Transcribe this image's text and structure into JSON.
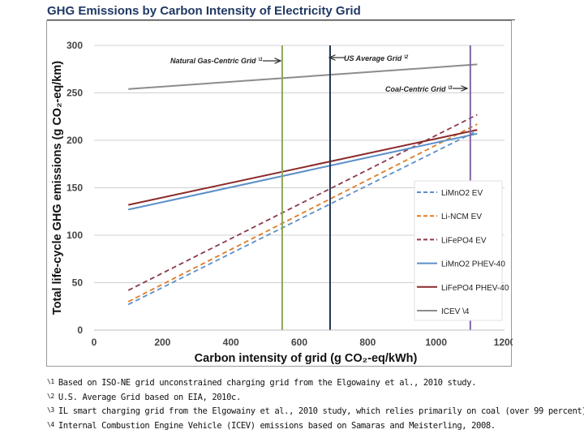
{
  "page": {
    "title": "GHG Emissions by Carbon Intensity of Electricity Grid"
  },
  "footnotes": [
    {
      "marker": "\\1",
      "text": "Based on ISO-NE grid unconstrained charging grid from the Elgowainy et al., 2010 study."
    },
    {
      "marker": "\\2",
      "text": "U.S. Average Grid based on EIA, 2010c."
    },
    {
      "marker": "\\3",
      "text": "IL smart charging grid from the Elgowainy et al., 2010 study, which relies primarily on coal (over  99 percent)."
    },
    {
      "marker": "\\4",
      "text": "Internal Combustion Engine Vehicle (ICEV) emissions based on Samaras and Meisterling, 2008."
    }
  ],
  "chart_data": {
    "type": "line",
    "title": "GHG Emissions by Carbon Intensity of Electricity Grid",
    "xlabel": "Carbon intensity of grid (g CO₂-eq/kWh)",
    "ylabel": "Total life-cycle GHG emissions (g CO₂-eq/km)",
    "xlim": [
      0,
      1200
    ],
    "ylim": [
      0,
      300
    ],
    "xticks": [
      0,
      200,
      400,
      600,
      800,
      1000,
      1200
    ],
    "yticks": [
      0,
      50,
      100,
      150,
      200,
      250,
      300
    ],
    "grid": "horizontal",
    "legend_position": "right",
    "series": [
      {
        "name": "LiMnO2 EV",
        "color": "#5b8fc8",
        "dash": "dashed",
        "x": [
          100,
          1120
        ],
        "y": [
          27,
          210
        ]
      },
      {
        "name": "Li-NCM EV",
        "color": "#e07b24",
        "dash": "dashed",
        "x": [
          100,
          1120
        ],
        "y": [
          30,
          217
        ]
      },
      {
        "name": "LiFePO4 EV",
        "color": "#8b3a4a",
        "dash": "dashed",
        "x": [
          100,
          1120
        ],
        "y": [
          42,
          227
        ]
      },
      {
        "name": "LiMnO2 PHEV-40",
        "color": "#5b8fc8",
        "dash": "solid",
        "x": [
          100,
          1120
        ],
        "y": [
          127,
          207
        ]
      },
      {
        "name": "LiFePO4 PHEV-40",
        "color": "#8b2a2a",
        "dash": "solid",
        "x": [
          100,
          1120
        ],
        "y": [
          132,
          211
        ]
      },
      {
        "name": "ICEV \\4",
        "color": "#8c8c8c",
        "dash": "solid",
        "x": [
          100,
          1120
        ],
        "y": [
          254,
          280
        ]
      }
    ],
    "reference_lines": [
      {
        "name": "Natural Gas-Centric Grid",
        "marker": "\\1",
        "x": 550,
        "color": "#8aa65b",
        "arrow": "right"
      },
      {
        "name": "US Average Grid",
        "marker": "\\2",
        "x": 690,
        "color": "#1f3550",
        "arrow": "left"
      },
      {
        "name": "Coal-Centric Grid",
        "marker": "\\3",
        "x": 1100,
        "color": "#8064a2",
        "arrow": "right"
      }
    ]
  }
}
